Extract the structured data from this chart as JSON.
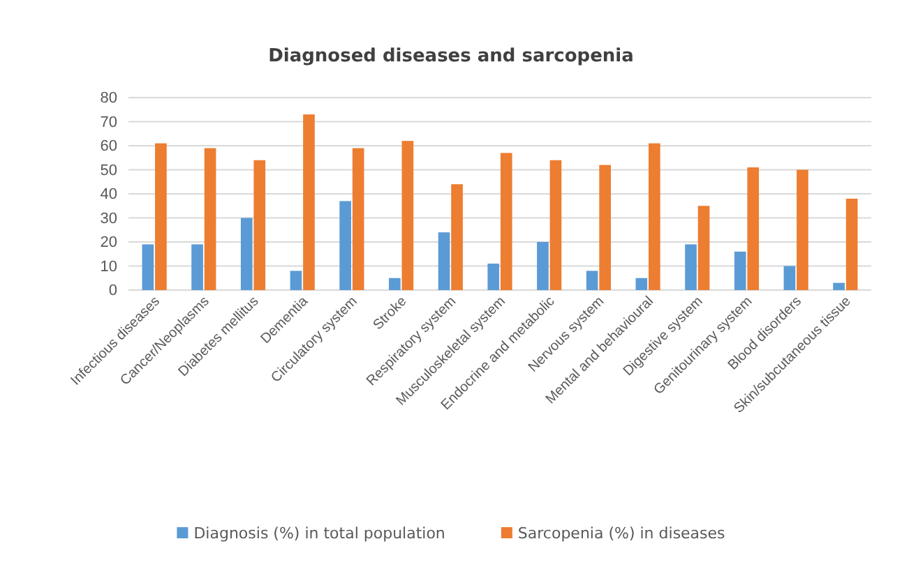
{
  "chart_data": {
    "type": "bar",
    "title": "Diagnosed diseases and sarcopenia",
    "categories": [
      "Infectious diseases",
      "Cancer/Neoplasms",
      "Diabetes mellitus",
      "Dementia",
      "Circulatory system",
      "Stroke",
      "Respiratory system",
      "Musculoskeletal system",
      "Endocrine and metabolic",
      "Nervous system",
      "Mental and behavioural",
      "Digestive system",
      "Genitourinary system",
      "Blood disorders",
      "Skin/subcutaneous tissue"
    ],
    "series": [
      {
        "name": "Diagnosis (%) in total population",
        "color": "#5b9bd5",
        "values": [
          19,
          19,
          30,
          8,
          37,
          5,
          24,
          11,
          20,
          8,
          5,
          19,
          16,
          10,
          3
        ]
      },
      {
        "name": "Sarcopenia (%) in diseases",
        "color": "#ed7d31",
        "values": [
          61,
          59,
          54,
          73,
          59,
          62,
          44,
          57,
          54,
          52,
          61,
          35,
          51,
          50,
          38
        ]
      }
    ],
    "ylim": [
      0,
      80
    ],
    "yticks": [
      0,
      10,
      20,
      30,
      40,
      50,
      60,
      70,
      80
    ],
    "grid": "y",
    "legend": "bottom"
  }
}
